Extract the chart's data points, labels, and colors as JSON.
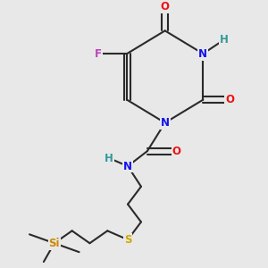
{
  "bg_color": "#e8e8e8",
  "bond_color": "#2a2a2a",
  "bond_width": 1.5,
  "atom_colors": {
    "O": "#ee1111",
    "N": "#1111ee",
    "F": "#bb44bb",
    "S": "#ccaa00",
    "Si": "#cc8800",
    "H": "#339999",
    "C": "#2a2a2a"
  },
  "font_size": 8.5
}
